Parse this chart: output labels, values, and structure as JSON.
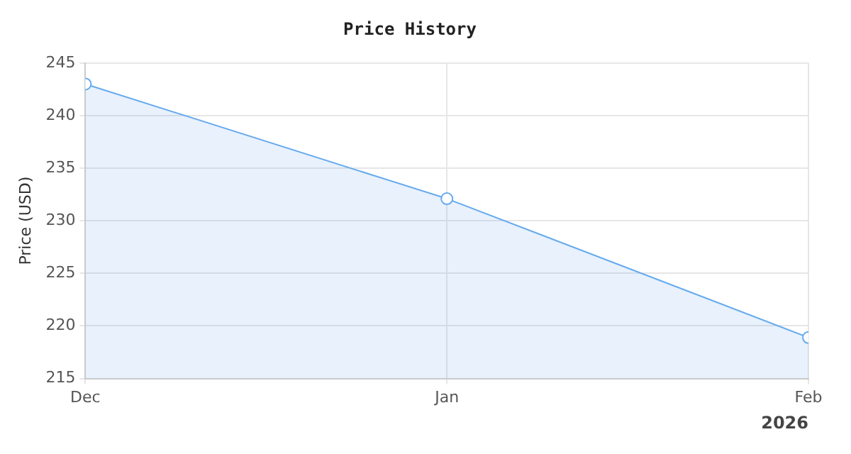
{
  "chart_data": {
    "type": "area",
    "title": "Price History",
    "ylabel": "Price (USD)",
    "x": [
      "2025-12-01",
      "2026-01-01",
      "2026-02-01"
    ],
    "series": [
      {
        "color": "#66aaee",
        "values": [
          243,
          232.1,
          218.9
        ]
      }
    ],
    "xlim": [
      "2025-12-01",
      "2026-02-01"
    ],
    "xticks": [
      {
        "value": "2025-12-01",
        "label": "Dec"
      },
      {
        "value": "2026-01-01",
        "label": "Jan"
      },
      {
        "value": "2026-02-01",
        "label": "Feb"
      }
    ],
    "ylim": [
      215,
      245
    ],
    "yticks": [
      215,
      220,
      225,
      230,
      235,
      240,
      245
    ],
    "annotations": [
      "2026"
    ],
    "grid": true,
    "legend": false,
    "marker": "circle",
    "line_style": "solid"
  }
}
